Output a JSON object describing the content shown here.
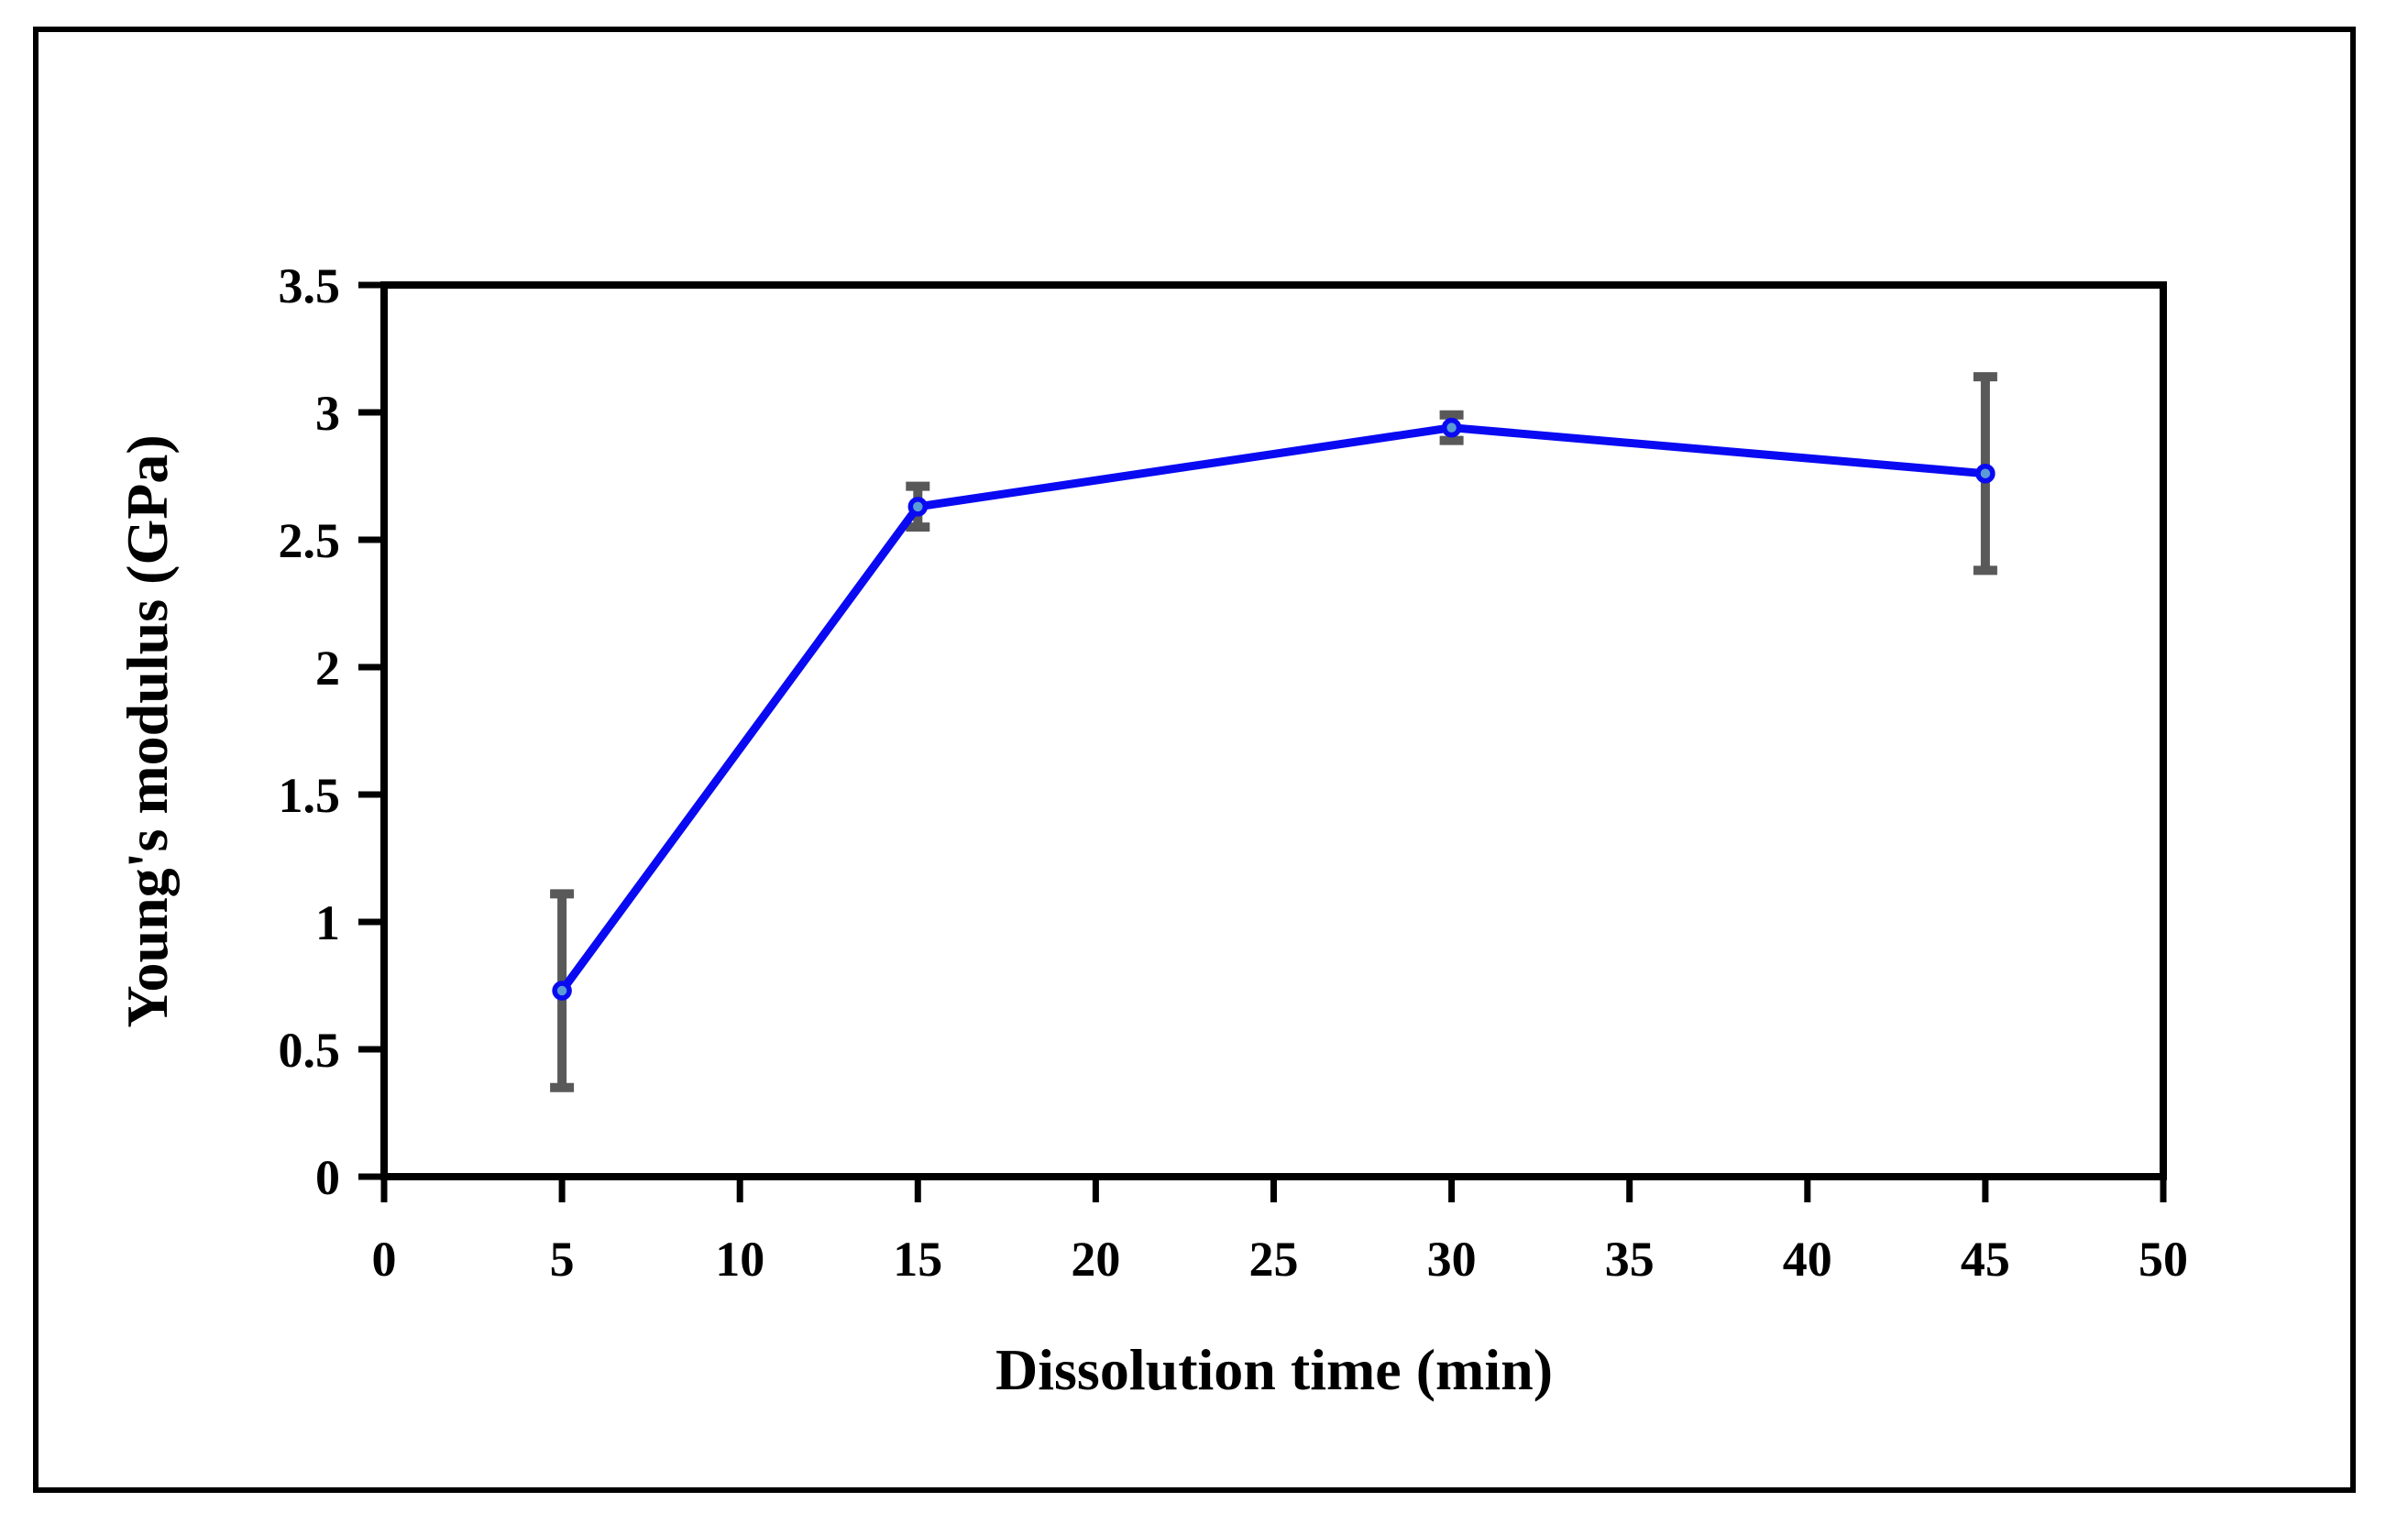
{
  "figure": {
    "background_color": "#ffffff",
    "border_color": "#000000"
  },
  "chart_data": {
    "type": "line",
    "title": "",
    "xlabel": "Dissolution time (min)",
    "ylabel": "Young's modulus (GPa)",
    "x": [
      5,
      15,
      30,
      45
    ],
    "y": [
      0.73,
      2.63,
      2.94,
      2.76
    ],
    "yerr": [
      0.38,
      0.08,
      0.05,
      0.38
    ],
    "xlim": [
      0,
      50
    ],
    "ylim": [
      0,
      3.5
    ],
    "xticks": [
      0,
      5,
      10,
      15,
      20,
      25,
      30,
      35,
      40,
      45,
      50
    ],
    "xtick_labels": [
      "0",
      "5",
      "10",
      "15",
      "20",
      "25",
      "30",
      "35",
      "40",
      "45",
      "50"
    ],
    "yticks": [
      0,
      0.5,
      1,
      1.5,
      2,
      2.5,
      3,
      3.5
    ],
    "ytick_labels": [
      "0",
      "0.5",
      "1",
      "1.5",
      "2",
      "2.5",
      "3",
      "3.5"
    ],
    "grid": false,
    "legend": false,
    "line_color": "#0a0af2",
    "marker_fill": "#5b9bd5",
    "error_bar_color": "#595959",
    "axis_color": "#000000"
  }
}
